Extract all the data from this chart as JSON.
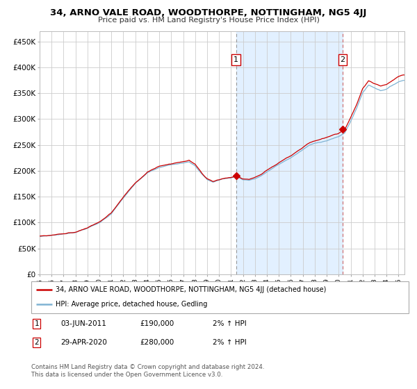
{
  "title": "34, ARNO VALE ROAD, WOODTHORPE, NOTTINGHAM, NG5 4JJ",
  "subtitle": "Price paid vs. HM Land Registry's House Price Index (HPI)",
  "legend_line1": "34, ARNO VALE ROAD, WOODTHORPE, NOTTINGHAM, NG5 4JJ (detached house)",
  "legend_line2": "HPI: Average price, detached house, Gedling",
  "annotation1_label": "1",
  "annotation1_date": "03-JUN-2011",
  "annotation1_price": 190000,
  "annotation1_year": 2011.42,
  "annotation2_label": "2",
  "annotation2_date": "29-APR-2020",
  "annotation2_price": 280000,
  "annotation2_year": 2020.33,
  "footer_line1": "Contains HM Land Registry data © Crown copyright and database right 2024.",
  "footer_line2": "This data is licensed under the Open Government Licence v3.0.",
  "red_color": "#cc0000",
  "blue_color": "#7fb3d3",
  "bg_shade_color": "#ddeeff",
  "grid_color": "#cccccc",
  "ylabel_values": [
    "£0",
    "£50K",
    "£100K",
    "£150K",
    "£200K",
    "£250K",
    "£300K",
    "£350K",
    "£400K",
    "£450K"
  ],
  "ytick_vals": [
    0,
    50000,
    100000,
    150000,
    200000,
    250000,
    300000,
    350000,
    400000,
    450000
  ],
  "ylim": [
    0,
    470000
  ],
  "xlim_start": 1995.0,
  "xlim_end": 2025.5,
  "hpi_base_points": [
    [
      1995.0,
      73000
    ],
    [
      1996.0,
      75500
    ],
    [
      1997.0,
      78000
    ],
    [
      1998.0,
      82000
    ],
    [
      1999.0,
      90000
    ],
    [
      2000.0,
      100000
    ],
    [
      2001.0,
      118000
    ],
    [
      2002.0,
      148000
    ],
    [
      2003.0,
      175000
    ],
    [
      2004.0,
      195000
    ],
    [
      2005.0,
      205000
    ],
    [
      2006.0,
      210000
    ],
    [
      2007.0,
      215000
    ],
    [
      2007.5,
      218000
    ],
    [
      2008.0,
      210000
    ],
    [
      2008.5,
      195000
    ],
    [
      2009.0,
      183000
    ],
    [
      2009.5,
      178000
    ],
    [
      2010.0,
      182000
    ],
    [
      2010.5,
      185000
    ],
    [
      2011.0,
      186000
    ],
    [
      2011.42,
      189000
    ],
    [
      2012.0,
      183000
    ],
    [
      2012.5,
      182000
    ],
    [
      2013.0,
      185000
    ],
    [
      2013.5,
      190000
    ],
    [
      2014.0,
      198000
    ],
    [
      2014.5,
      205000
    ],
    [
      2015.0,
      212000
    ],
    [
      2016.0,
      225000
    ],
    [
      2017.0,
      240000
    ],
    [
      2017.5,
      248000
    ],
    [
      2018.0,
      252000
    ],
    [
      2018.5,
      255000
    ],
    [
      2019.0,
      258000
    ],
    [
      2019.5,
      262000
    ],
    [
      2020.0,
      265000
    ],
    [
      2020.33,
      270000
    ],
    [
      2020.5,
      272000
    ],
    [
      2021.0,
      295000
    ],
    [
      2021.5,
      320000
    ],
    [
      2022.0,
      350000
    ],
    [
      2022.5,
      365000
    ],
    [
      2023.0,
      360000
    ],
    [
      2023.5,
      355000
    ],
    [
      2024.0,
      358000
    ],
    [
      2024.5,
      365000
    ],
    [
      2025.0,
      372000
    ],
    [
      2025.4,
      375000
    ]
  ]
}
